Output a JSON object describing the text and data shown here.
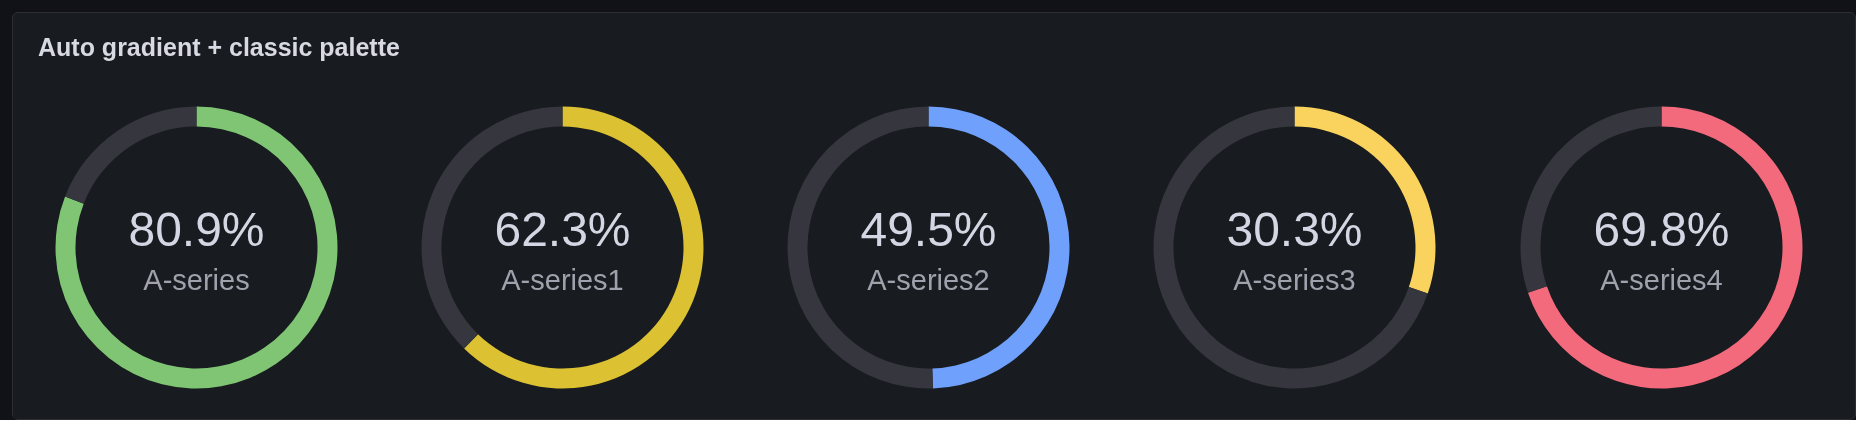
{
  "chart_data": [
    {
      "type": "donut",
      "title": "Auto gradient + classic palette",
      "subtitle": "A-series",
      "categories": [
        null,
        null
      ],
      "values": [
        80.9,
        19.1
      ],
      "colors": [
        "#7fc573",
        "#35363e"
      ],
      "value_labels": [
        "80.9%",
        null
      ]
    },
    {
      "type": "donut",
      "subtitle": "A-series1",
      "categories": [
        null,
        null
      ],
      "values": [
        62.3,
        37.7
      ],
      "colors": [
        "#dcc232",
        "#35363e"
      ],
      "value_labels": [
        "62.3%",
        null
      ]
    },
    {
      "type": "donut",
      "subtitle": "A-series2",
      "categories": [
        null,
        null
      ],
      "values": [
        49.5,
        50.5
      ],
      "colors": [
        "#6fa0fb",
        "#35363e"
      ],
      "value_labels": [
        "49.5%",
        null
      ]
    },
    {
      "type": "donut",
      "subtitle": "A-series3",
      "categories": [
        null,
        null
      ],
      "values": [
        30.3,
        69.7
      ],
      "colors": [
        "#f9d35e",
        "#35363e"
      ],
      "value_labels": [
        "30.3%",
        null
      ]
    },
    {
      "type": "donut",
      "subtitle": "A-series4",
      "categories": [
        null,
        null
      ],
      "values": [
        69.8,
        30.2
      ],
      "colors": [
        "#f46a7d",
        "#35363e"
      ],
      "value_labels": [
        "69.8%",
        null
      ]
    }
  ]
}
